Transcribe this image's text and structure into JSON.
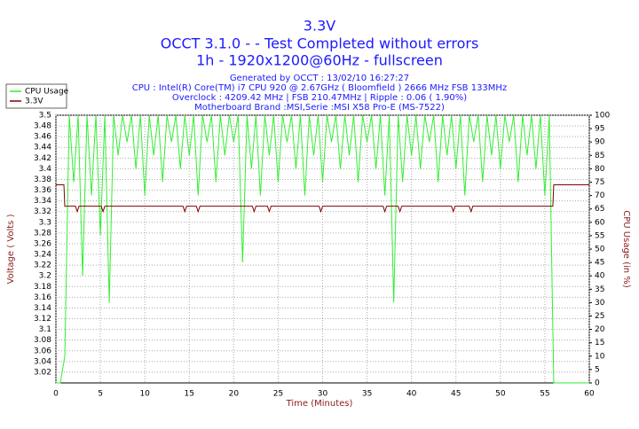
{
  "chart_data": {
    "type": "line",
    "title": "3.3V",
    "subtitle": "OCCT 3.1.0 -  - Test Completed without errors",
    "subtitle2": "1h - 1920x1200@60Hz - fullscreen",
    "info": [
      "Generated by OCCT : 13/02/10 16:27:27",
      "CPU : Intel(R) Core(TM) i7 CPU 920 @ 2.67GHz ( Bloomfield ) 2666 MHz FSB 133MHz",
      "Overclock : 4209.42 MHz | FSB 210.47MHz | Ripple : 0.06 ( 1.90%)",
      "Motherboard Brand :MSI,Serie :MSI X58 Pro-E (MS-7522)"
    ],
    "x_label": "Time (Minutes)",
    "y_label": "Voltage ( Volts )",
    "y2_label": "CPU Usage (in %)",
    "xlim": [
      0,
      60
    ],
    "xticks": [
      0,
      5,
      10,
      15,
      20,
      25,
      30,
      35,
      40,
      45,
      50,
      55,
      60
    ],
    "ylim": [
      3.0,
      3.5
    ],
    "yticks": [
      3.02,
      3.04,
      3.06,
      3.08,
      3.1,
      3.12,
      3.14,
      3.16,
      3.18,
      3.2,
      3.22,
      3.24,
      3.26,
      3.28,
      3.3,
      3.32,
      3.34,
      3.36,
      3.38,
      3.4,
      3.42,
      3.44,
      3.46,
      3.48,
      3.5
    ],
    "y2lim": [
      0,
      100
    ],
    "y2ticks": [
      0,
      5,
      10,
      15,
      20,
      25,
      30,
      35,
      40,
      45,
      50,
      55,
      60,
      65,
      70,
      75,
      80,
      85,
      90,
      95,
      100
    ],
    "grid": true,
    "series": [
      {
        "name": "CPU Usage",
        "color": "#33ee33",
        "axis": "y2",
        "x": [
          0,
          0.5,
          1,
          1.5,
          2,
          2.5,
          3,
          3.5,
          4,
          4.5,
          5,
          5.5,
          6,
          6.5,
          7,
          7.5,
          8,
          8.5,
          9,
          9.5,
          10,
          10.5,
          11,
          11.5,
          12,
          12.5,
          13,
          13.5,
          14,
          14.5,
          15,
          15.5,
          16,
          16.5,
          17,
          17.5,
          18,
          18.5,
          19,
          19.5,
          20,
          20.5,
          21,
          21.5,
          22,
          22.5,
          23,
          23.5,
          24,
          24.5,
          25,
          25.5,
          26,
          26.5,
          27,
          27.5,
          28,
          28.5,
          29,
          29.5,
          30,
          30.5,
          31,
          31.5,
          32,
          32.5,
          33,
          33.5,
          34,
          34.5,
          35,
          35.5,
          36,
          36.5,
          37,
          37.5,
          38,
          38.5,
          39,
          39.5,
          40,
          40.5,
          41,
          41.5,
          42,
          42.5,
          43,
          43.5,
          44,
          44.5,
          45,
          45.5,
          46,
          46.5,
          47,
          47.5,
          48,
          48.5,
          49,
          49.5,
          50,
          50.5,
          51,
          51.5,
          52,
          52.5,
          53,
          53.5,
          54,
          54.5,
          55,
          55.5,
          56,
          56.5,
          57,
          57.5,
          58,
          58.5,
          59,
          59.5,
          60
        ],
        "values": [
          0,
          0,
          10,
          100,
          75,
          100,
          40,
          100,
          70,
          100,
          55,
          100,
          30,
          100,
          85,
          100,
          90,
          100,
          80,
          100,
          70,
          100,
          85,
          100,
          75,
          100,
          90,
          100,
          80,
          100,
          85,
          100,
          70,
          100,
          90,
          100,
          75,
          100,
          85,
          100,
          90,
          100,
          45,
          100,
          80,
          100,
          70,
          100,
          85,
          100,
          75,
          100,
          90,
          100,
          80,
          100,
          70,
          100,
          85,
          100,
          75,
          100,
          90,
          100,
          80,
          100,
          85,
          100,
          75,
          100,
          90,
          100,
          80,
          100,
          70,
          100,
          30,
          100,
          75,
          100,
          85,
          100,
          80,
          100,
          90,
          100,
          75,
          100,
          85,
          100,
          80,
          100,
          70,
          100,
          90,
          100,
          75,
          100,
          85,
          100,
          80,
          100,
          90,
          100,
          75,
          100,
          85,
          100,
          80,
          100,
          70,
          100,
          0,
          0,
          0,
          0,
          0,
          0,
          0,
          0,
          0
        ]
      },
      {
        "name": "3.3V",
        "color": "#800000",
        "x": [
          0,
          0.9,
          1,
          2.2,
          2.4,
          2.6,
          5.1,
          5.3,
          5.5,
          14.3,
          14.5,
          14.7,
          15.8,
          16,
          16.2,
          22.1,
          22.3,
          22.5,
          23.8,
          24,
          24.2,
          29.6,
          29.8,
          30,
          36.8,
          37,
          37.2,
          38.5,
          38.7,
          38.9,
          44.5,
          44.7,
          44.9,
          46.5,
          46.7,
          46.9,
          55.9,
          56,
          60
        ],
        "values": [
          3.37,
          3.37,
          3.33,
          3.33,
          3.32,
          3.33,
          3.33,
          3.32,
          3.33,
          3.33,
          3.32,
          3.33,
          3.33,
          3.32,
          3.33,
          3.33,
          3.32,
          3.33,
          3.33,
          3.32,
          3.33,
          3.33,
          3.32,
          3.33,
          3.33,
          3.32,
          3.33,
          3.33,
          3.32,
          3.33,
          3.33,
          3.32,
          3.33,
          3.33,
          3.32,
          3.33,
          3.33,
          3.37,
          3.37
        ]
      }
    ]
  }
}
